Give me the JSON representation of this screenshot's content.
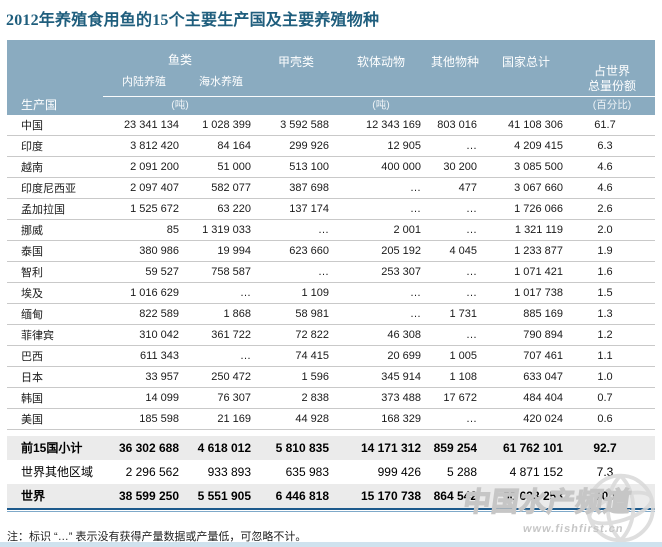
{
  "title": "2012年养殖食用鱼的15个主要生产国及主要养殖物种",
  "table": {
    "headers": {
      "producer": "生产国",
      "fish": "鱼类",
      "inland": "内陆养殖",
      "marine": "海水养殖",
      "crustaceans": "甲壳类",
      "molluscs": "软体动物",
      "other": "其他物种",
      "total": "国家总计",
      "share_line1": "占世界",
      "share_line2": "总量份额"
    },
    "units": {
      "fish_unit": "(吨)",
      "mid_unit": "(吨)",
      "share_unit": "(百分比)"
    },
    "rows": [
      {
        "cells": [
          "中国",
          "23 341 134",
          "1 028 399",
          "3 592 588",
          "12 343 169",
          "803 016",
          "41 108 306",
          "61.7"
        ]
      },
      {
        "cells": [
          "印度",
          "3 812 420",
          "84 164",
          "299 926",
          "12 905",
          "…",
          "4 209 415",
          "6.3"
        ]
      },
      {
        "cells": [
          "越南",
          "2 091 200",
          "51 000",
          "513 100",
          "400 000",
          "30 200",
          "3 085 500",
          "4.6"
        ]
      },
      {
        "cells": [
          "印度尼西亚",
          "2 097 407",
          "582 077",
          "387 698",
          "…",
          "477",
          "3 067 660",
          "4.6"
        ]
      },
      {
        "cells": [
          "孟加拉国",
          "1 525 672",
          "63 220",
          "137 174",
          "…",
          "…",
          "1 726 066",
          "2.6"
        ]
      },
      {
        "cells": [
          "挪威",
          "85",
          "1 319 033",
          "…",
          "2 001",
          "…",
          "1 321 119",
          "2.0"
        ]
      },
      {
        "cells": [
          "泰国",
          "380 986",
          "19 994",
          "623 660",
          "205 192",
          "4 045",
          "1 233 877",
          "1.9"
        ]
      },
      {
        "cells": [
          "智利",
          "59 527",
          "758 587",
          "…",
          "253 307",
          "…",
          "1 071 421",
          "1.6"
        ]
      },
      {
        "cells": [
          "埃及",
          "1 016 629",
          "…",
          "1 109",
          "…",
          "…",
          "1 017 738",
          "1.5"
        ]
      },
      {
        "cells": [
          "缅甸",
          "822 589",
          "1 868",
          "58 981",
          "…",
          "1 731",
          "885 169",
          "1.3"
        ]
      },
      {
        "cells": [
          "菲律宾",
          "310 042",
          "361 722",
          "72 822",
          "46 308",
          "…",
          "790 894",
          "1.2"
        ]
      },
      {
        "cells": [
          "巴西",
          "611 343",
          "…",
          "74 415",
          "20 699",
          "1 005",
          "707 461",
          "1.1"
        ]
      },
      {
        "cells": [
          "日本",
          "33 957",
          "250 472",
          "1 596",
          "345 914",
          "1 108",
          "633 047",
          "1.0"
        ]
      },
      {
        "cells": [
          "韩国",
          "14 099",
          "76 307",
          "2 838",
          "373 488",
          "17 672",
          "484 404",
          "0.7"
        ]
      },
      {
        "cells": [
          "美国",
          "185 598",
          "21 169",
          "44 928",
          "168 329",
          "…",
          "420 024",
          "0.6"
        ]
      }
    ],
    "summary_rows": [
      {
        "style": "subtotal",
        "cells": [
          "前15国小计",
          "36 302 688",
          "4 618 012",
          "5 810 835",
          "14 171 312",
          "859 254",
          "61 762 101",
          "92.7"
        ]
      },
      {
        "style": "rest",
        "cells": [
          "世界其他区域",
          "2 296 562",
          "933 893",
          "635 983",
          "999 426",
          "5 288",
          "4 871 152",
          "7.3"
        ]
      },
      {
        "style": "world",
        "cells": [
          "世界",
          "38 599 250",
          "5 551 905",
          "6 446 818",
          "15 170 738",
          "864 542",
          "66 633 253",
          "100"
        ]
      }
    ]
  },
  "note": "注：标识 “…” 表示没有获得产量数据或产量低，可忽略不计。",
  "watermark": {
    "name": "中国水产频道",
    "url": "www.fishfirst.cn"
  },
  "colors": {
    "title_text": "#1f5e7d",
    "header_bg": "#8aabc0",
    "header_text": "#ffffff",
    "row_border": "#c9c9c9",
    "data_text": "#1a1a1a",
    "summary_bg": "#ebebeb",
    "bottom_line": "#1d5a8c",
    "bottom_line2": "#7fa9c9",
    "note_text": "#222222",
    "watermark_gray": "#c6c6c6",
    "footer_strip": "#cfe2ee"
  }
}
